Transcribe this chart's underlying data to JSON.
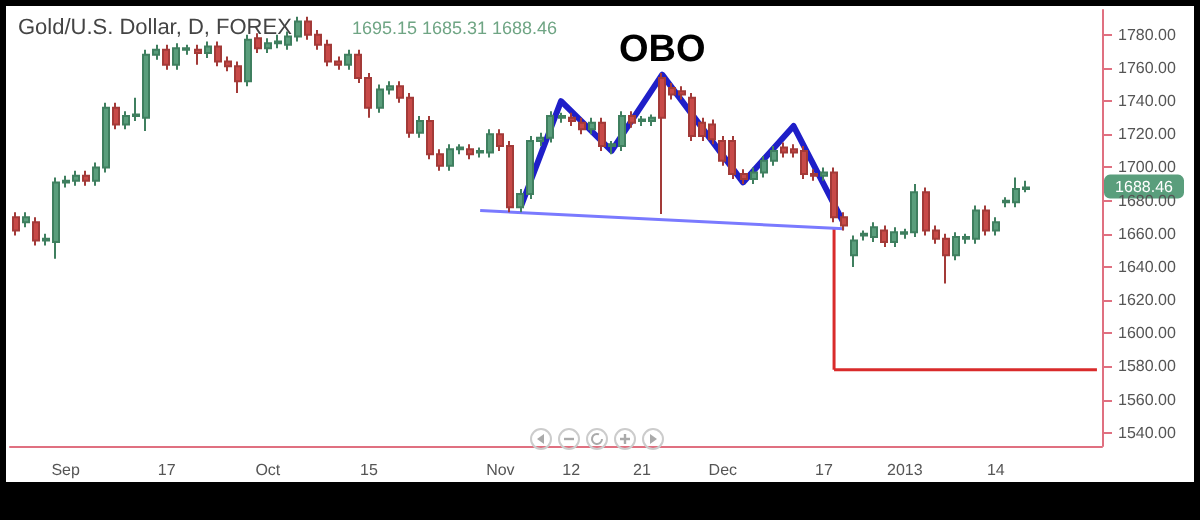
{
  "chart_data": {
    "type": "candlestick",
    "title": "Gold/U.S. Dollar, D, FOREX",
    "subtitle": "1695.15  1685.31  1688.46",
    "categories": [
      null,
      null,
      null,
      null,
      null,
      "Sep",
      null,
      null,
      null,
      null,
      null,
      null,
      null,
      null,
      null,
      "17",
      null,
      null,
      null,
      null,
      null,
      null,
      null,
      null,
      null,
      "Oct",
      null,
      null,
      null,
      null,
      null,
      null,
      null,
      null,
      null,
      "15",
      null,
      null,
      null,
      null,
      null,
      null,
      null,
      null,
      null,
      null,
      null,
      null,
      "Nov",
      null,
      null,
      null,
      null,
      null,
      null,
      "12",
      null,
      null,
      null,
      null,
      null,
      null,
      "21",
      null,
      null,
      null,
      null,
      null,
      null,
      null,
      "Dec",
      null,
      null,
      null,
      null,
      null,
      null,
      null,
      null,
      null,
      "17",
      null,
      null,
      null,
      null,
      null,
      null,
      null,
      "2013",
      null,
      null,
      null,
      null,
      null,
      null,
      null,
      null,
      "14",
      null,
      null,
      null,
      null,
      null,
      null,
      null,
      null,
      null,
      null
    ],
    "ohlc": [
      [
        1670,
        1673,
        1659,
        1662
      ],
      [
        1667,
        1673,
        1664,
        1670
      ],
      [
        1667,
        1670,
        1653,
        1656
      ],
      [
        1656,
        1660,
        1653,
        1657
      ],
      [
        1655,
        1694,
        1645,
        1691
      ],
      [
        1691,
        1695,
        1688,
        1692
      ],
      [
        1692,
        1698,
        1689,
        1695
      ],
      [
        1695,
        1698,
        1689,
        1692
      ],
      [
        1692,
        1703,
        1689,
        1700
      ],
      [
        1700,
        1739,
        1697,
        1736
      ],
      [
        1736,
        1739,
        1723,
        1726
      ],
      [
        1726,
        1734,
        1723,
        1731
      ],
      [
        1731,
        1742,
        1728,
        1732
      ],
      [
        1730,
        1771,
        1722,
        1768
      ],
      [
        1768,
        1774,
        1765,
        1771
      ],
      [
        1771,
        1774,
        1759,
        1762
      ],
      [
        1762,
        1775,
        1759,
        1772
      ],
      [
        1771,
        1774,
        1768,
        1772
      ],
      [
        1771,
        1774,
        1762,
        1769
      ],
      [
        1769,
        1776,
        1766,
        1773
      ],
      [
        1773,
        1776,
        1761,
        1764
      ],
      [
        1764,
        1767,
        1758,
        1761
      ],
      [
        1761,
        1764,
        1745,
        1752
      ],
      [
        1752,
        1780,
        1749,
        1777
      ],
      [
        1778,
        1781,
        1769,
        1772
      ],
      [
        1772,
        1778,
        1769,
        1775
      ],
      [
        1775,
        1780,
        1772,
        1776
      ],
      [
        1774,
        1782,
        1771,
        1779
      ],
      [
        1779,
        1791,
        1776,
        1788
      ],
      [
        1788,
        1791,
        1777,
        1780
      ],
      [
        1780,
        1783,
        1771,
        1774
      ],
      [
        1774,
        1777,
        1761,
        1764
      ],
      [
        1764,
        1767,
        1759,
        1762
      ],
      [
        1762,
        1771,
        1759,
        1768
      ],
      [
        1768,
        1771,
        1751,
        1754
      ],
      [
        1754,
        1757,
        1730,
        1736
      ],
      [
        1736,
        1750,
        1733,
        1747
      ],
      [
        1747,
        1752,
        1744,
        1749
      ],
      [
        1749,
        1752,
        1739,
        1742
      ],
      [
        1742,
        1745,
        1718,
        1721
      ],
      [
        1721,
        1731,
        1718,
        1728
      ],
      [
        1728,
        1731,
        1705,
        1708
      ],
      [
        1708,
        1711,
        1698,
        1701
      ],
      [
        1701,
        1714,
        1698,
        1711
      ],
      [
        1711,
        1714,
        1708,
        1712
      ],
      [
        1711,
        1714,
        1705,
        1708
      ],
      [
        1709,
        1712,
        1706,
        1710
      ],
      [
        1709,
        1723,
        1706,
        1720
      ],
      [
        1720,
        1723,
        1710,
        1713
      ],
      [
        1713,
        1716,
        1673,
        1676
      ],
      [
        1676,
        1687,
        1673,
        1684
      ],
      [
        1684,
        1719,
        1681,
        1716
      ],
      [
        1716,
        1721,
        1713,
        1718
      ],
      [
        1718,
        1734,
        1715,
        1731
      ],
      [
        1730,
        1733,
        1727,
        1731
      ],
      [
        1730,
        1733,
        1725,
        1728
      ],
      [
        1727,
        1730,
        1720,
        1723
      ],
      [
        1723,
        1730,
        1720,
        1727
      ],
      [
        1727,
        1730,
        1710,
        1713
      ],
      [
        1713,
        1716,
        1708,
        1714
      ],
      [
        1713,
        1734,
        1710,
        1731
      ],
      [
        1731,
        1734,
        1724,
        1727
      ],
      [
        1728,
        1731,
        1725,
        1729
      ],
      [
        1728,
        1732,
        1725,
        1730
      ],
      [
        1754,
        1757,
        1672,
        1730
      ],
      [
        1748,
        1751,
        1741,
        1744
      ],
      [
        1746,
        1749,
        1741,
        1744
      ],
      [
        1742,
        1745,
        1716,
        1719
      ],
      [
        1727,
        1730,
        1716,
        1719
      ],
      [
        1726,
        1729,
        1714,
        1717
      ],
      [
        1716,
        1719,
        1701,
        1704
      ],
      [
        1716,
        1719,
        1693,
        1696
      ],
      [
        1696,
        1699,
        1690,
        1693
      ],
      [
        1693,
        1700,
        1690,
        1697
      ],
      [
        1697,
        1707,
        1694,
        1704
      ],
      [
        1704,
        1713,
        1701,
        1710
      ],
      [
        1712,
        1715,
        1706,
        1709
      ],
      [
        1711,
        1714,
        1706,
        1709
      ],
      [
        1710,
        1713,
        1693,
        1696
      ],
      [
        1696,
        1699,
        1692,
        1695
      ],
      [
        1695,
        1700,
        1692,
        1697
      ],
      [
        1697,
        1700,
        1667,
        1670
      ],
      [
        1670,
        1673,
        1662,
        1665
      ],
      [
        1647,
        1659,
        1640,
        1656
      ],
      [
        1659,
        1662,
        1656,
        1660
      ],
      [
        1658,
        1667,
        1655,
        1664
      ],
      [
        1662,
        1665,
        1652,
        1655
      ],
      [
        1655,
        1664,
        1652,
        1661
      ],
      [
        1660,
        1663,
        1657,
        1661
      ],
      [
        1661,
        1690,
        1658,
        1685
      ],
      [
        1685,
        1688,
        1659,
        1662
      ],
      [
        1662,
        1665,
        1654,
        1657
      ],
      [
        1657,
        1660,
        1630,
        1647
      ],
      [
        1647,
        1661,
        1644,
        1658
      ],
      [
        1657,
        1660,
        1654,
        1658
      ],
      [
        1657,
        1677,
        1654,
        1674
      ],
      [
        1674,
        1677,
        1659,
        1662
      ],
      [
        1662,
        1670,
        1659,
        1667
      ],
      [
        1679,
        1682,
        1676,
        1680
      ],
      [
        1679,
        1694,
        1676,
        1687
      ],
      [
        1687,
        1692,
        1685,
        1688
      ],
      null,
      null,
      null,
      null,
      null,
      null,
      null
    ],
    "series": [
      {
        "type": "line",
        "color": "#1f1fc8",
        "values": [
          null,
          null,
          null,
          null,
          null,
          null,
          null,
          null,
          null,
          null,
          null,
          null,
          null,
          null,
          null,
          null,
          null,
          null,
          null,
          null,
          null,
          null,
          null,
          null,
          null,
          null,
          null,
          null,
          null,
          null,
          null,
          null,
          null,
          null,
          null,
          null,
          null,
          null,
          null,
          null,
          null,
          null,
          null,
          null,
          null,
          null,
          null,
          null,
          null,
          null,
          1676,
          null,
          null,
          null,
          1740,
          null,
          null,
          null,
          null,
          1710,
          null,
          null,
          null,
          null,
          1756,
          null,
          null,
          null,
          null,
          null,
          null,
          null,
          1691,
          null,
          null,
          null,
          null,
          1725,
          null,
          null,
          null,
          null,
          1666,
          null,
          null,
          null,
          null,
          null,
          null,
          null,
          null,
          null,
          null,
          null,
          null,
          null,
          null,
          null,
          null,
          null,
          null,
          null,
          null,
          null,
          null,
          null,
          null,
          null
        ]
      },
      {
        "type": "line",
        "color": "#7a7aff",
        "values": [
          null,
          null,
          null,
          null,
          null,
          null,
          null,
          null,
          null,
          null,
          null,
          null,
          null,
          null,
          null,
          null,
          null,
          null,
          null,
          null,
          null,
          null,
          null,
          null,
          null,
          null,
          null,
          null,
          null,
          null,
          null,
          null,
          null,
          null,
          null,
          null,
          null,
          null,
          null,
          null,
          null,
          null,
          null,
          null,
          null,
          null,
          1674,
          null,
          null,
          null,
          null,
          null,
          null,
          null,
          null,
          null,
          null,
          null,
          null,
          null,
          null,
          null,
          null,
          null,
          null,
          null,
          null,
          null,
          null,
          null,
          null,
          null,
          null,
          null,
          null,
          null,
          null,
          null,
          null,
          null,
          null,
          null,
          1663,
          null,
          null,
          null,
          null,
          null,
          null,
          null,
          null,
          null,
          null,
          null,
          null,
          null,
          null,
          null,
          null,
          null,
          null,
          null,
          null,
          null,
          null,
          null,
          null,
          null
        ]
      },
      {
        "type": "line",
        "color": "#d92b2b",
        "values": [
          null,
          null,
          null,
          null,
          null,
          null,
          null,
          null,
          null,
          null,
          null,
          null,
          null,
          null,
          null,
          null,
          null,
          null,
          null,
          null,
          null,
          null,
          null,
          null,
          null,
          null,
          null,
          null,
          null,
          null,
          null,
          null,
          null,
          null,
          null,
          null,
          null,
          null,
          null,
          null,
          null,
          null,
          null,
          null,
          null,
          null,
          null,
          null,
          null,
          null,
          null,
          null,
          null,
          null,
          null,
          null,
          null,
          null,
          null,
          null,
          null,
          null,
          null,
          null,
          null,
          null,
          null,
          null,
          null,
          null,
          null,
          null,
          null,
          null,
          null,
          null,
          null,
          null,
          null,
          null,
          null,
          1578,
          null,
          null,
          null,
          null,
          null,
          null,
          null,
          null,
          null,
          null,
          null,
          null,
          null,
          null,
          null,
          null,
          null,
          null,
          null,
          null,
          null,
          null,
          null,
          null,
          null,
          1578
        ]
      },
      {
        "type": "bar",
        "color": "#d92b2b",
        "base": [
          null,
          null,
          null,
          null,
          null,
          null,
          null,
          null,
          null,
          null,
          null,
          null,
          null,
          null,
          null,
          null,
          null,
          null,
          null,
          null,
          null,
          null,
          null,
          null,
          null,
          null,
          null,
          null,
          null,
          null,
          null,
          null,
          null,
          null,
          null,
          null,
          null,
          null,
          null,
          null,
          null,
          null,
          null,
          null,
          null,
          null,
          null,
          null,
          null,
          null,
          null,
          null,
          null,
          null,
          null,
          null,
          null,
          null,
          null,
          null,
          null,
          null,
          null,
          null,
          null,
          null,
          null,
          null,
          null,
          null,
          null,
          null,
          null,
          null,
          null,
          null,
          null,
          null,
          null,
          null,
          null,
          1578,
          null,
          null,
          null,
          null,
          null,
          null,
          null,
          null,
          null,
          null,
          null,
          null,
          null,
          null,
          null,
          null,
          null,
          null,
          null,
          null,
          null,
          null,
          null,
          null,
          null,
          null
        ],
        "values": [
          null,
          null,
          null,
          null,
          null,
          null,
          null,
          null,
          null,
          null,
          null,
          null,
          null,
          null,
          null,
          null,
          null,
          null,
          null,
          null,
          null,
          null,
          null,
          null,
          null,
          null,
          null,
          null,
          null,
          null,
          null,
          null,
          null,
          null,
          null,
          null,
          null,
          null,
          null,
          null,
          null,
          null,
          null,
          null,
          null,
          null,
          null,
          null,
          null,
          null,
          null,
          null,
          null,
          null,
          null,
          null,
          null,
          null,
          null,
          null,
          null,
          null,
          null,
          null,
          null,
          null,
          null,
          null,
          null,
          null,
          null,
          null,
          null,
          null,
          null,
          null,
          null,
          null,
          null,
          null,
          null,
          86,
          null,
          null,
          null,
          null,
          null,
          null,
          null,
          null,
          null,
          null,
          null,
          null,
          null,
          null,
          null,
          null,
          null,
          null,
          null,
          null,
          null,
          null,
          null,
          null,
          null,
          null
        ]
      }
    ],
    "ylim": [
      1532,
      1795
    ],
    "yticks": [
      {
        "value": 1540,
        "label": "1540.00"
      },
      {
        "value": 1560,
        "label": "1560.00"
      },
      {
        "value": 1580,
        "label": "1580.00"
      },
      {
        "value": 1600,
        "label": "1600.00"
      },
      {
        "value": 1620,
        "label": "1620.00"
      },
      {
        "value": 1640,
        "label": "1640.00"
      },
      {
        "value": 1660,
        "label": "1660.00"
      },
      {
        "value": 1680,
        "label": "1680.00"
      },
      {
        "value": 1700,
        "label": "1700.00"
      },
      {
        "value": 1720,
        "label": "1720.00"
      },
      {
        "value": 1740,
        "label": "1740.00"
      },
      {
        "value": 1760,
        "label": "1760.00"
      },
      {
        "value": 1780,
        "label": "1780.00"
      }
    ],
    "annotations": [
      "OBO",
      {
        "text": "1688.46",
        "y": 1688.46
      }
    ],
    "grid": false
  }
}
